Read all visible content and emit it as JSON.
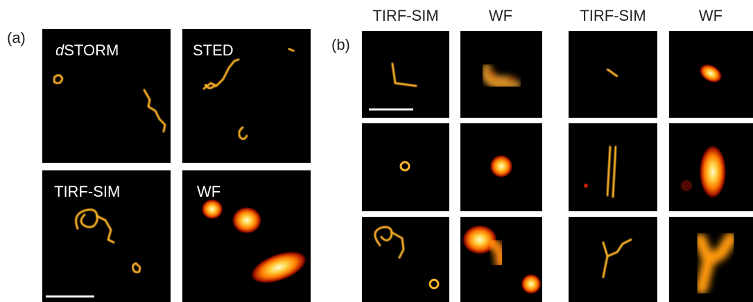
{
  "panel_a": {
    "label": "(a)",
    "images": [
      {
        "italic": "d",
        "text": "STORM"
      },
      {
        "text": "STED"
      },
      {
        "text": "TIRF-SIM"
      },
      {
        "text": "WF"
      }
    ]
  },
  "panel_b": {
    "label": "(b)",
    "columns": [
      "TIRF-SIM",
      "WF",
      "TIRF-SIM",
      "WF"
    ]
  }
}
